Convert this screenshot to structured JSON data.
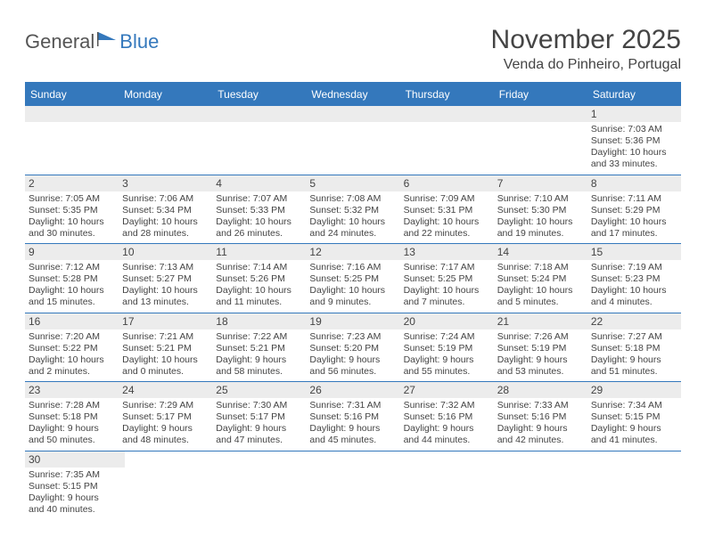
{
  "brand": {
    "part1": "General",
    "part2": "Blue"
  },
  "title": "November 2025",
  "location": "Venda do Pinheiro, Portugal",
  "colors": {
    "header_bg": "#3478bc",
    "header_text": "#ffffff",
    "band_bg": "#ececec",
    "rule": "#3478bc",
    "body_text": "#444444",
    "page_bg": "#ffffff"
  },
  "typography": {
    "title_fontsize": 30,
    "location_fontsize": 16,
    "dayheader_fontsize": 12,
    "body_fontsize": 10.5
  },
  "day_headers": [
    "Sunday",
    "Monday",
    "Tuesday",
    "Wednesday",
    "Thursday",
    "Friday",
    "Saturday"
  ],
  "weeks": [
    [
      null,
      null,
      null,
      null,
      null,
      null,
      {
        "n": "1",
        "sr": "Sunrise: 7:03 AM",
        "ss": "Sunset: 5:36 PM",
        "d1": "Daylight: 10 hours",
        "d2": "and 33 minutes."
      }
    ],
    [
      {
        "n": "2",
        "sr": "Sunrise: 7:05 AM",
        "ss": "Sunset: 5:35 PM",
        "d1": "Daylight: 10 hours",
        "d2": "and 30 minutes."
      },
      {
        "n": "3",
        "sr": "Sunrise: 7:06 AM",
        "ss": "Sunset: 5:34 PM",
        "d1": "Daylight: 10 hours",
        "d2": "and 28 minutes."
      },
      {
        "n": "4",
        "sr": "Sunrise: 7:07 AM",
        "ss": "Sunset: 5:33 PM",
        "d1": "Daylight: 10 hours",
        "d2": "and 26 minutes."
      },
      {
        "n": "5",
        "sr": "Sunrise: 7:08 AM",
        "ss": "Sunset: 5:32 PM",
        "d1": "Daylight: 10 hours",
        "d2": "and 24 minutes."
      },
      {
        "n": "6",
        "sr": "Sunrise: 7:09 AM",
        "ss": "Sunset: 5:31 PM",
        "d1": "Daylight: 10 hours",
        "d2": "and 22 minutes."
      },
      {
        "n": "7",
        "sr": "Sunrise: 7:10 AM",
        "ss": "Sunset: 5:30 PM",
        "d1": "Daylight: 10 hours",
        "d2": "and 19 minutes."
      },
      {
        "n": "8",
        "sr": "Sunrise: 7:11 AM",
        "ss": "Sunset: 5:29 PM",
        "d1": "Daylight: 10 hours",
        "d2": "and 17 minutes."
      }
    ],
    [
      {
        "n": "9",
        "sr": "Sunrise: 7:12 AM",
        "ss": "Sunset: 5:28 PM",
        "d1": "Daylight: 10 hours",
        "d2": "and 15 minutes."
      },
      {
        "n": "10",
        "sr": "Sunrise: 7:13 AM",
        "ss": "Sunset: 5:27 PM",
        "d1": "Daylight: 10 hours",
        "d2": "and 13 minutes."
      },
      {
        "n": "11",
        "sr": "Sunrise: 7:14 AM",
        "ss": "Sunset: 5:26 PM",
        "d1": "Daylight: 10 hours",
        "d2": "and 11 minutes."
      },
      {
        "n": "12",
        "sr": "Sunrise: 7:16 AM",
        "ss": "Sunset: 5:25 PM",
        "d1": "Daylight: 10 hours",
        "d2": "and 9 minutes."
      },
      {
        "n": "13",
        "sr": "Sunrise: 7:17 AM",
        "ss": "Sunset: 5:25 PM",
        "d1": "Daylight: 10 hours",
        "d2": "and 7 minutes."
      },
      {
        "n": "14",
        "sr": "Sunrise: 7:18 AM",
        "ss": "Sunset: 5:24 PM",
        "d1": "Daylight: 10 hours",
        "d2": "and 5 minutes."
      },
      {
        "n": "15",
        "sr": "Sunrise: 7:19 AM",
        "ss": "Sunset: 5:23 PM",
        "d1": "Daylight: 10 hours",
        "d2": "and 4 minutes."
      }
    ],
    [
      {
        "n": "16",
        "sr": "Sunrise: 7:20 AM",
        "ss": "Sunset: 5:22 PM",
        "d1": "Daylight: 10 hours",
        "d2": "and 2 minutes."
      },
      {
        "n": "17",
        "sr": "Sunrise: 7:21 AM",
        "ss": "Sunset: 5:21 PM",
        "d1": "Daylight: 10 hours",
        "d2": "and 0 minutes."
      },
      {
        "n": "18",
        "sr": "Sunrise: 7:22 AM",
        "ss": "Sunset: 5:21 PM",
        "d1": "Daylight: 9 hours",
        "d2": "and 58 minutes."
      },
      {
        "n": "19",
        "sr": "Sunrise: 7:23 AM",
        "ss": "Sunset: 5:20 PM",
        "d1": "Daylight: 9 hours",
        "d2": "and 56 minutes."
      },
      {
        "n": "20",
        "sr": "Sunrise: 7:24 AM",
        "ss": "Sunset: 5:19 PM",
        "d1": "Daylight: 9 hours",
        "d2": "and 55 minutes."
      },
      {
        "n": "21",
        "sr": "Sunrise: 7:26 AM",
        "ss": "Sunset: 5:19 PM",
        "d1": "Daylight: 9 hours",
        "d2": "and 53 minutes."
      },
      {
        "n": "22",
        "sr": "Sunrise: 7:27 AM",
        "ss": "Sunset: 5:18 PM",
        "d1": "Daylight: 9 hours",
        "d2": "and 51 minutes."
      }
    ],
    [
      {
        "n": "23",
        "sr": "Sunrise: 7:28 AM",
        "ss": "Sunset: 5:18 PM",
        "d1": "Daylight: 9 hours",
        "d2": "and 50 minutes."
      },
      {
        "n": "24",
        "sr": "Sunrise: 7:29 AM",
        "ss": "Sunset: 5:17 PM",
        "d1": "Daylight: 9 hours",
        "d2": "and 48 minutes."
      },
      {
        "n": "25",
        "sr": "Sunrise: 7:30 AM",
        "ss": "Sunset: 5:17 PM",
        "d1": "Daylight: 9 hours",
        "d2": "and 47 minutes."
      },
      {
        "n": "26",
        "sr": "Sunrise: 7:31 AM",
        "ss": "Sunset: 5:16 PM",
        "d1": "Daylight: 9 hours",
        "d2": "and 45 minutes."
      },
      {
        "n": "27",
        "sr": "Sunrise: 7:32 AM",
        "ss": "Sunset: 5:16 PM",
        "d1": "Daylight: 9 hours",
        "d2": "and 44 minutes."
      },
      {
        "n": "28",
        "sr": "Sunrise: 7:33 AM",
        "ss": "Sunset: 5:16 PM",
        "d1": "Daylight: 9 hours",
        "d2": "and 42 minutes."
      },
      {
        "n": "29",
        "sr": "Sunrise: 7:34 AM",
        "ss": "Sunset: 5:15 PM",
        "d1": "Daylight: 9 hours",
        "d2": "and 41 minutes."
      }
    ],
    [
      {
        "n": "30",
        "sr": "Sunrise: 7:35 AM",
        "ss": "Sunset: 5:15 PM",
        "d1": "Daylight: 9 hours",
        "d2": "and 40 minutes."
      },
      null,
      null,
      null,
      null,
      null,
      null
    ]
  ]
}
